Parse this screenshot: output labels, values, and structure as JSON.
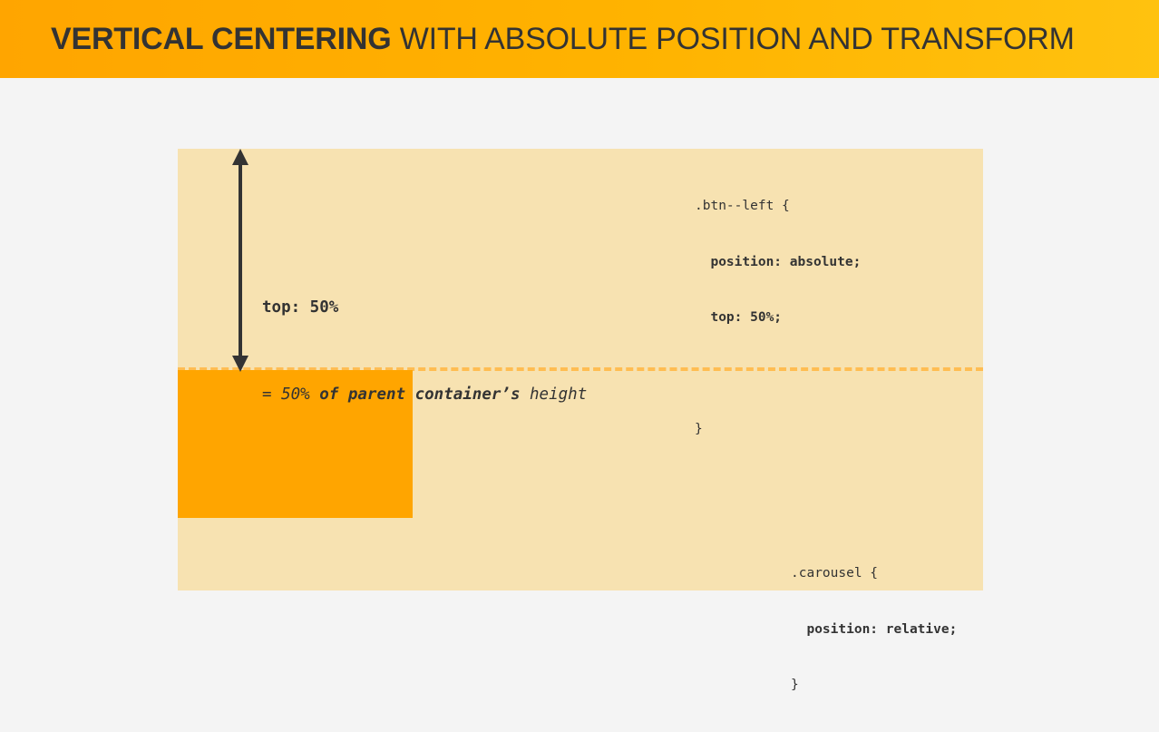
{
  "header": {
    "title_bold": "VERTICAL CENTERING",
    "title_rest": " WITH ABSOLUTE POSITION AND TRANSFORM",
    "background": "#ffa500"
  },
  "diagram": {
    "parent_color": "#f7e2b1",
    "box_color": "#ffa500",
    "guide_color": "#ffbd52",
    "arrow": "double-headed vertical arrow from parent top to the 50% guide line",
    "note": {
      "line1": "top: 50%",
      "line2_prefix": "= ",
      "line2_italic_1": "50%",
      "line2_bold_italic": " of parent container’s",
      "line2_italic_2": " height"
    },
    "code_btn_left": {
      "selector_open": ".btn--left {",
      "decl_1": "  position: absolute;",
      "decl_2": "  top: 50%;",
      "blank": " ",
      "close": "}"
    },
    "code_carousel": {
      "selector_open": ".carousel {",
      "decl_1": "  position: relative;",
      "close": "}"
    }
  }
}
